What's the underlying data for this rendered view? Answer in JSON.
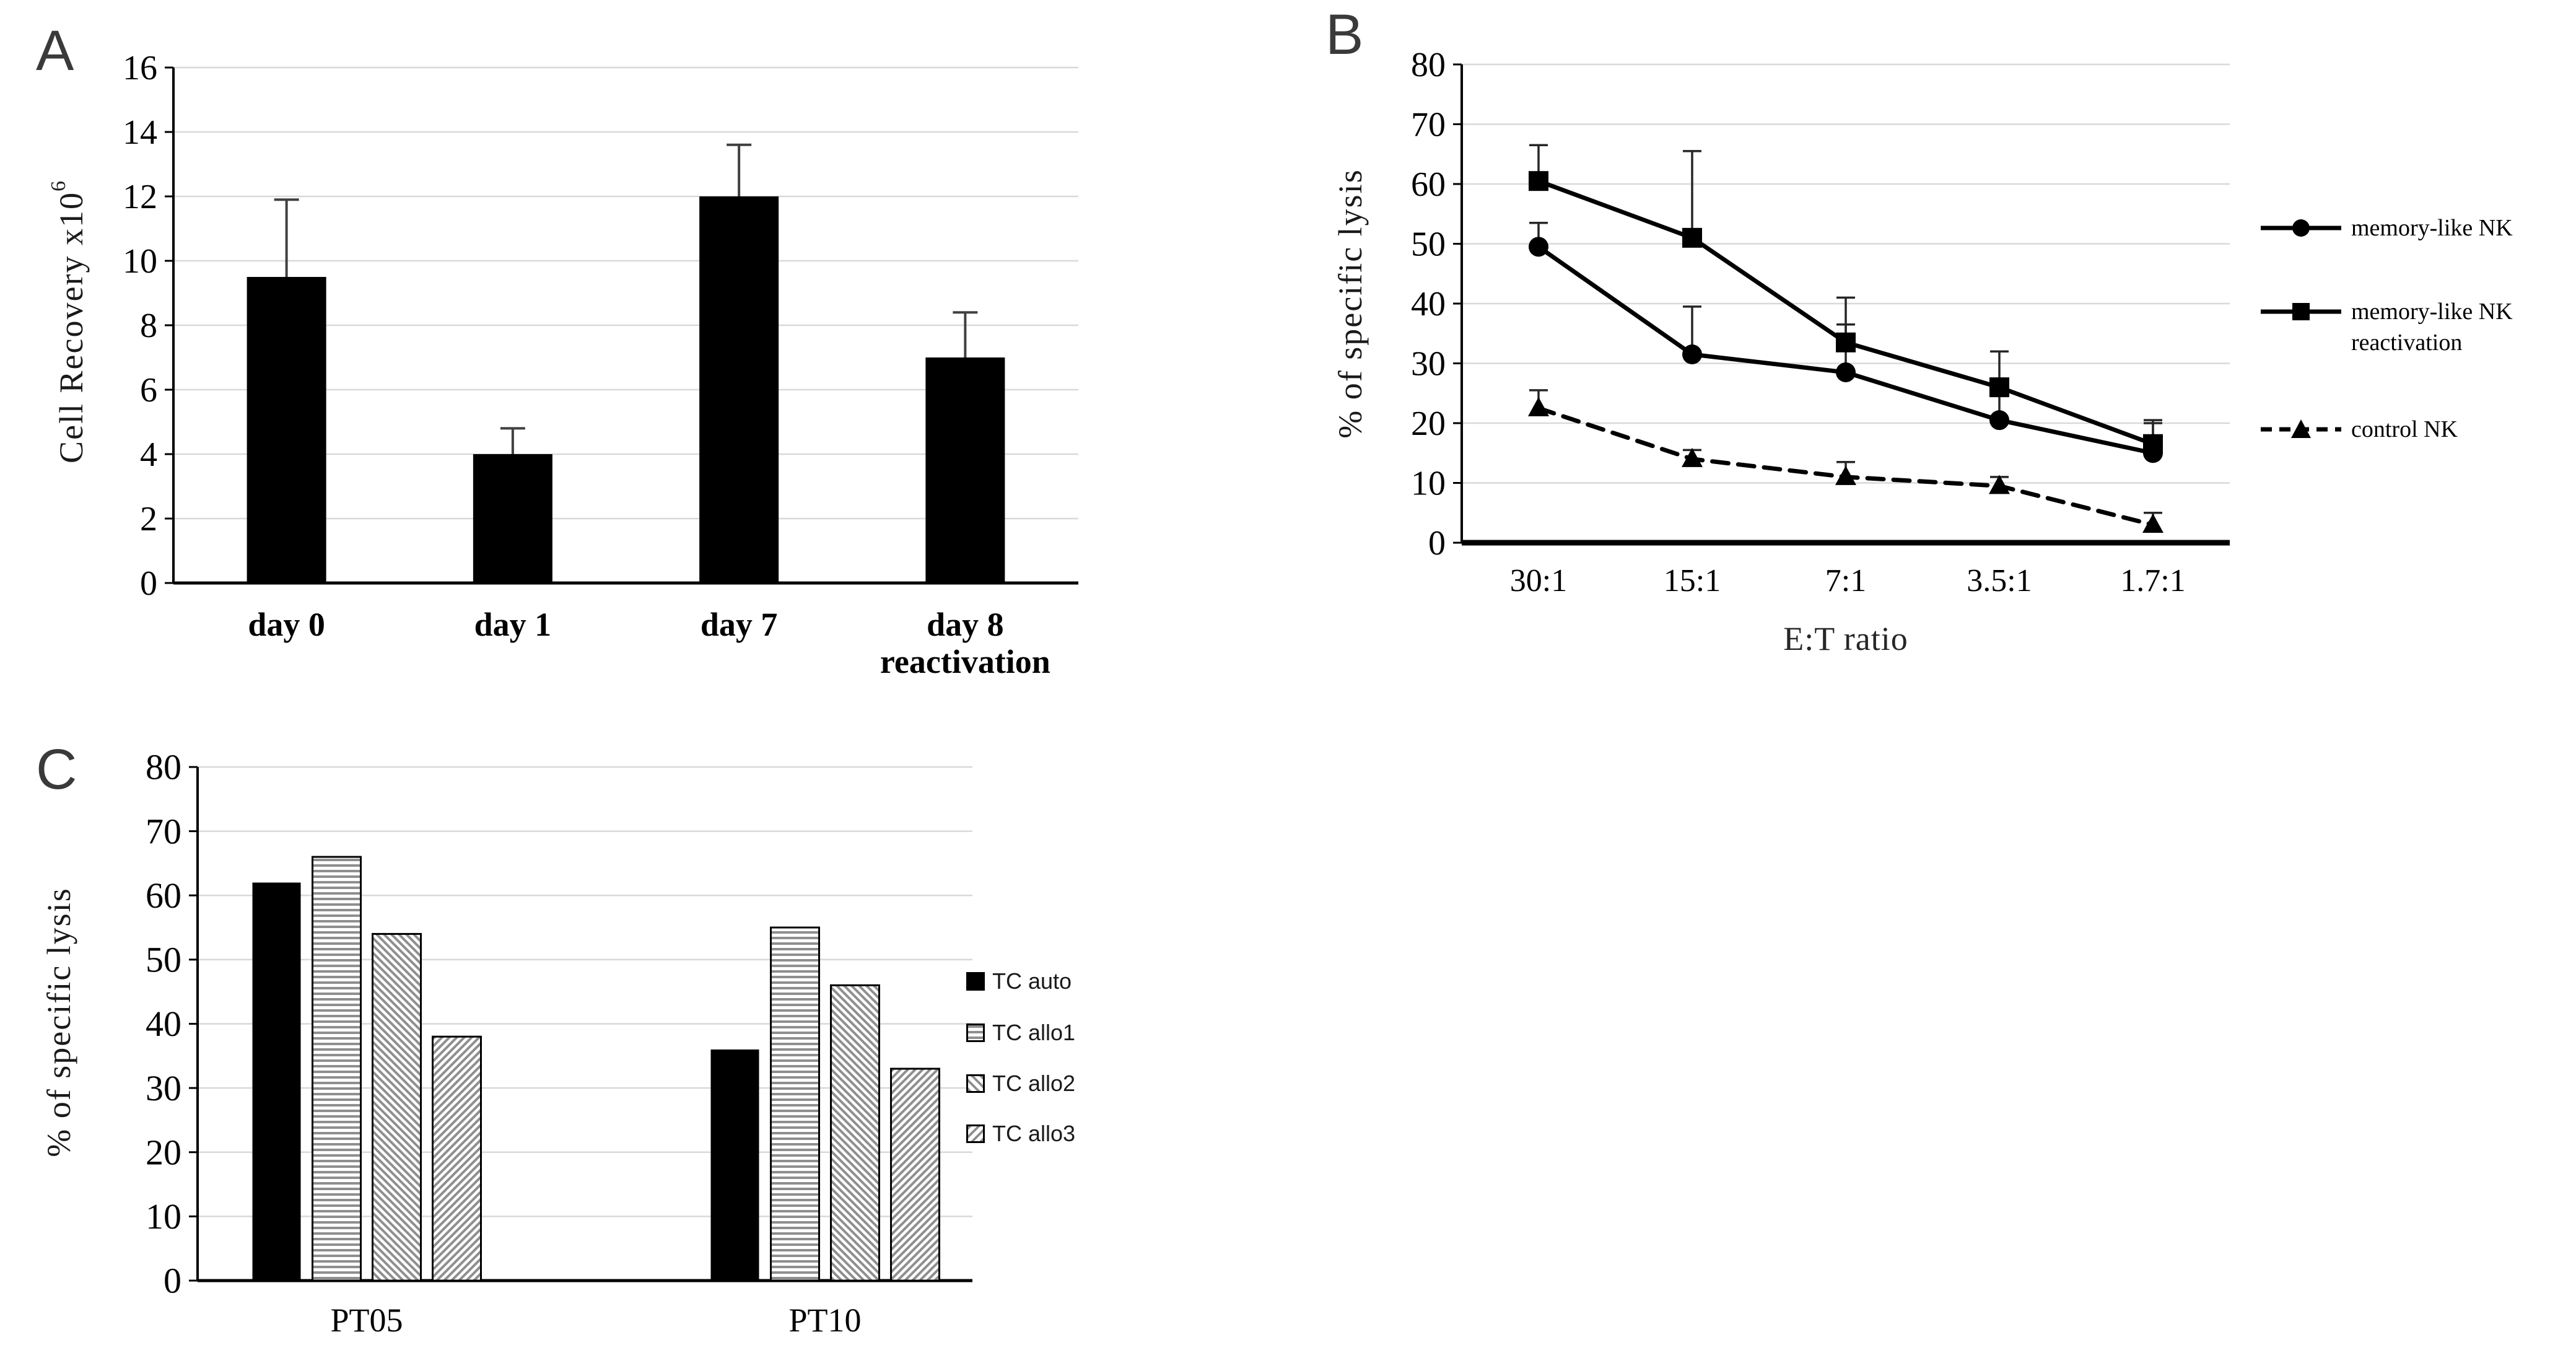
{
  "panels": {
    "A": {
      "letter": "A"
    },
    "B": {
      "letter": "B"
    },
    "C": {
      "letter": "C"
    }
  },
  "chart_data": [
    {
      "panel": "A",
      "type": "bar",
      "title": "",
      "categories": [
        "day 0",
        "day 1",
        "day 7",
        "day 8 reactivation"
      ],
      "categories_lines": [
        [
          "day 0"
        ],
        [
          "day 1"
        ],
        [
          "day 7"
        ],
        [
          "day 8",
          "reactivation"
        ]
      ],
      "values": [
        9.5,
        4,
        12,
        7
      ],
      "error_up": [
        2.4,
        0.8,
        1.6,
        1.4
      ],
      "ylabel_main": "Cell Recovery x10",
      "ylabel_sup": "6",
      "ylim": [
        0,
        16
      ],
      "ytick_step": 2,
      "grid": true,
      "bar_color": "#000000",
      "error_color": "#404040"
    },
    {
      "panel": "B",
      "type": "line",
      "title": "",
      "x_categories": [
        "30:1",
        "15:1",
        "7:1",
        "3.5:1",
        "1.7:1"
      ],
      "xlabel": "E:T ratio",
      "ylabel": "% of specific lysis",
      "ylim": [
        0,
        80
      ],
      "ytick_step": 10,
      "grid": true,
      "legend_position": "right",
      "series": [
        {
          "name": "memory-like NK",
          "marker": "circle",
          "line": "solid",
          "values": [
            49.5,
            31.5,
            28.5,
            20.5,
            15
          ],
          "error_up": [
            4,
            8,
            8,
            5,
            5
          ],
          "color": "#000000"
        },
        {
          "name": "memory-like NK reactivation",
          "marker": "square",
          "line": "solid",
          "values": [
            60.5,
            51,
            33.5,
            26,
            16.5
          ],
          "error_up": [
            6,
            14.5,
            7.5,
            6,
            4
          ],
          "color": "#000000"
        },
        {
          "name": "control NK",
          "marker": "triangle",
          "line": "dashed",
          "values": [
            22.5,
            14,
            11,
            9.5,
            3
          ],
          "error_up": [
            3,
            1.5,
            2.5,
            1.5,
            2
          ],
          "color": "#000000"
        }
      ]
    },
    {
      "panel": "C",
      "type": "bar",
      "title": "",
      "categories": [
        "PT05",
        "PT10"
      ],
      "ylabel": "% of specific lysis",
      "ylim": [
        0,
        80
      ],
      "ytick_step": 10,
      "grid": true,
      "legend_position": "right",
      "series": [
        {
          "name": "TC auto",
          "pattern": "solid-black",
          "values": [
            62,
            36
          ]
        },
        {
          "name": "TC allo1",
          "pattern": "horizontal-stripes",
          "values": [
            66,
            55
          ]
        },
        {
          "name": "TC allo2",
          "pattern": "diagonal-stripes-down",
          "values": [
            54,
            46
          ]
        },
        {
          "name": "TC allo3",
          "pattern": "diagonal-stripes-up",
          "values": [
            38,
            33
          ]
        }
      ],
      "stripe_color": "#8f8f8f"
    }
  ]
}
